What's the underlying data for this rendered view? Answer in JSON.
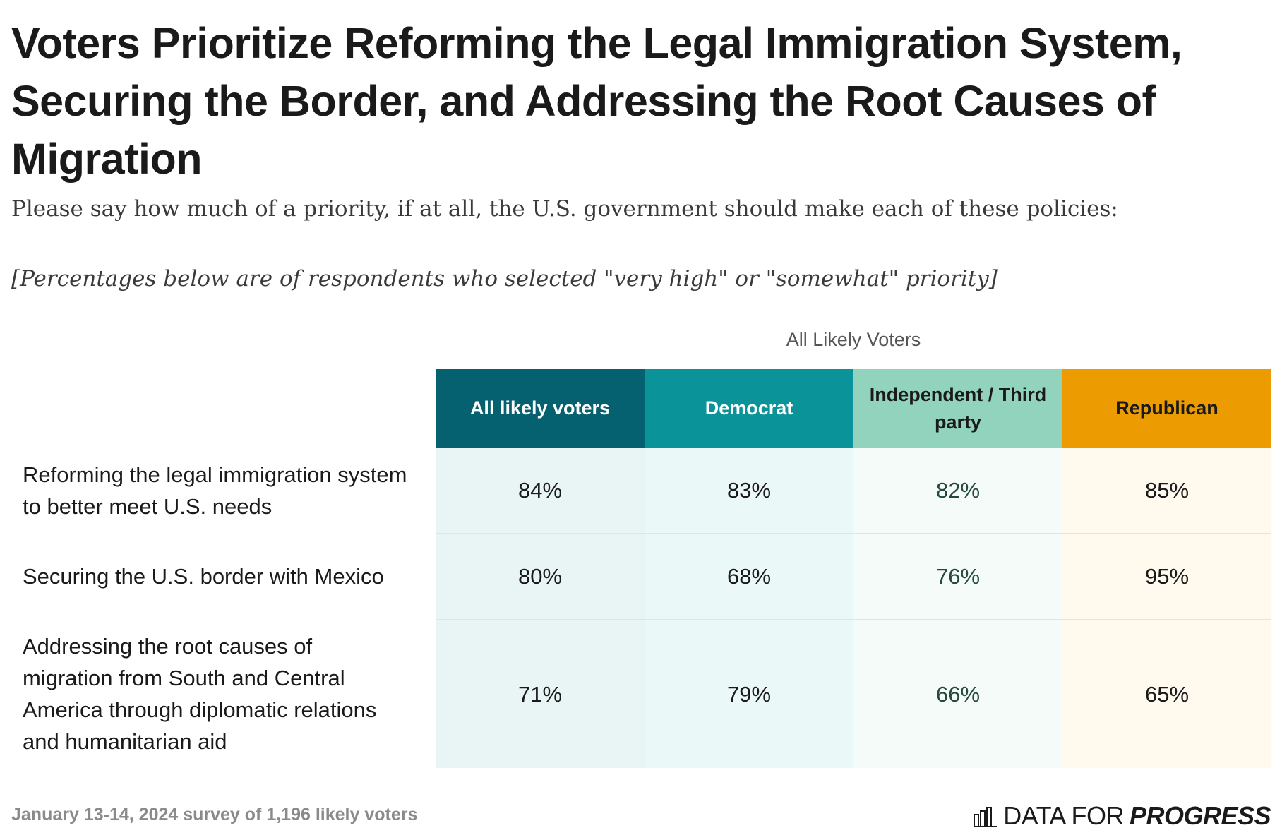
{
  "title": "Voters Prioritize Reforming the Legal Immigration System, Securing the Border, and Addressing the Root Causes of Migration",
  "subtitle": "Please say how much of a priority, if at all, the U.S. government should make each of these policies:",
  "note": "[Percentages below are of respondents who selected \"very high\" or \"somewhat\" priority]",
  "group_label": "All Likely Voters",
  "source": "January 13-14, 2024 survey of 1,196 likely voters",
  "logo": {
    "icon": "bar-chart-icon",
    "text_light": "DATA FOR",
    "text_strong": "PROGRESS"
  },
  "colors": {
    "all_likely_voters": "#05606f",
    "democrat": "#0a9399",
    "independent": "#92d3bd",
    "republican": "#ec9c00"
  },
  "chart_data": {
    "type": "table",
    "columns": [
      "All likely voters",
      "Democrat",
      "Independent / Third party",
      "Republican"
    ],
    "rows": [
      {
        "label": "Reforming the legal immigration system to better meet U.S. needs",
        "values": [
          "84%",
          "83%",
          "82%",
          "85%"
        ]
      },
      {
        "label": "Securing the U.S. border with Mexico",
        "values": [
          "80%",
          "68%",
          "76%",
          "95%"
        ]
      },
      {
        "label": "Addressing the root causes of migration from South and Central America through diplomatic relations and humanitarian aid",
        "values": [
          "71%",
          "79%",
          "66%",
          "65%"
        ]
      }
    ]
  }
}
